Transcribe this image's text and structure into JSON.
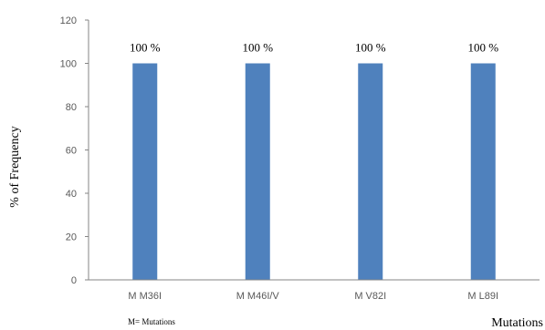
{
  "chart_data": {
    "type": "bar",
    "categories": [
      "M M36I",
      "M M46I/V",
      "M V82I",
      "M L89I"
    ],
    "values": [
      100,
      100,
      100,
      100
    ],
    "data_labels": [
      "100 %",
      "100 %",
      "100 %",
      "100 %"
    ],
    "title": "",
    "xlabel": "Mutations",
    "ylabel": "% of Frequency",
    "ylim": [
      0,
      120
    ],
    "yticks": [
      0,
      20,
      40,
      60,
      80,
      100,
      120
    ],
    "grid": false,
    "legend": "none",
    "footnote": "M= Mutations",
    "colors": {
      "bar": "#4f81bd",
      "axis": "#868686",
      "tick_text": "#595959",
      "text": "#000000"
    }
  }
}
